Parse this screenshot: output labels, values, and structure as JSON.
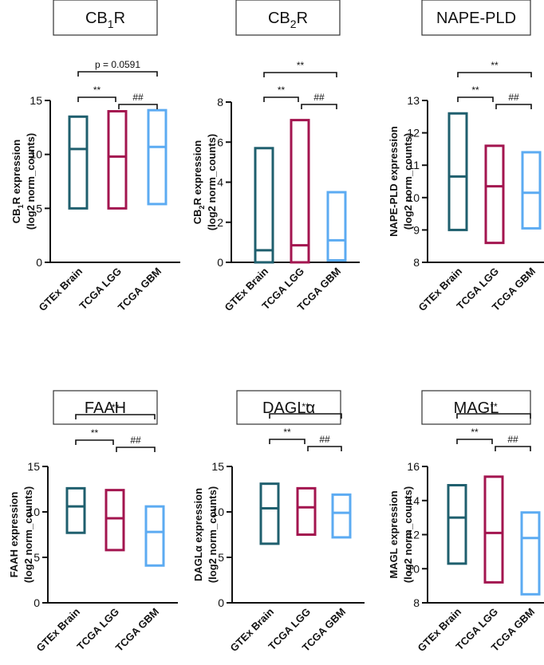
{
  "chart_data": [
    {
      "type": "box",
      "title": "CB1R",
      "title_parts": [
        {
          "t": "CB"
        },
        {
          "t": "1",
          "sub": true
        },
        {
          "t": "R"
        }
      ],
      "ylabel_lines": [
        [
          {
            "t": "CB"
          },
          {
            "t": "1",
            "sub": true
          },
          {
            "t": "R expression"
          }
        ],
        [
          {
            "t": "(log2 norm_counts)"
          }
        ]
      ],
      "ylim": [
        0,
        15
      ],
      "yticks": [
        0,
        5,
        10,
        15
      ],
      "categories": [
        "GTEx Brain",
        "TCGA LGG",
        "TCGA GBM"
      ],
      "boxes": [
        {
          "min": 5.0,
          "median": 10.5,
          "max": 13.5
        },
        {
          "min": 5.0,
          "median": 9.8,
          "max": 14.0
        },
        {
          "min": 5.4,
          "median": 10.7,
          "max": 14.1
        }
      ],
      "brackets": [
        {
          "from": 0,
          "to": 1,
          "label": "**"
        },
        {
          "from": 1,
          "to": 2,
          "label": "##"
        },
        {
          "from": 0,
          "to": 2,
          "label": "p = 0.0591"
        }
      ]
    },
    {
      "type": "box",
      "title": "CB2R",
      "title_parts": [
        {
          "t": "CB"
        },
        {
          "t": "2",
          "sub": true
        },
        {
          "t": "R"
        }
      ],
      "ylabel_lines": [
        [
          {
            "t": "CB"
          },
          {
            "t": "2",
            "sub": true
          },
          {
            "t": "R expression"
          }
        ],
        [
          {
            "t": "(log2 norm_counts)"
          }
        ]
      ],
      "ylim": [
        0,
        8
      ],
      "yticks": [
        0,
        2,
        4,
        6,
        8
      ],
      "categories": [
        "GTEx Brain",
        "TCGA LGG",
        "TCGA GBM"
      ],
      "boxes": [
        {
          "min": 0.0,
          "median": 0.6,
          "max": 5.7
        },
        {
          "min": 0.0,
          "median": 0.85,
          "max": 7.1
        },
        {
          "min": 0.1,
          "median": 1.1,
          "max": 3.5
        }
      ],
      "brackets": [
        {
          "from": 0,
          "to": 1,
          "label": "**"
        },
        {
          "from": 1,
          "to": 2,
          "label": "##"
        },
        {
          "from": 0,
          "to": 2,
          "label": "**"
        }
      ]
    },
    {
      "type": "box",
      "title": "NAPE-PLD",
      "title_parts": [
        {
          "t": "NAPE-PLD"
        }
      ],
      "ylabel_lines": [
        [
          {
            "t": "NAPE-PLD expression"
          }
        ],
        [
          {
            "t": "(log2 norm_counts)"
          }
        ]
      ],
      "ylim": [
        8,
        13
      ],
      "yticks": [
        8,
        9,
        10,
        11,
        12,
        13
      ],
      "categories": [
        "GTEx Brain",
        "TCGA LGG",
        "TCGA GBM"
      ],
      "boxes": [
        {
          "min": 9.0,
          "median": 10.65,
          "max": 12.6
        },
        {
          "min": 8.6,
          "median": 10.35,
          "max": 11.6
        },
        {
          "min": 9.05,
          "median": 10.15,
          "max": 11.4
        }
      ],
      "brackets": [
        {
          "from": 0,
          "to": 1,
          "label": "**"
        },
        {
          "from": 1,
          "to": 2,
          "label": "##"
        },
        {
          "from": 0,
          "to": 2,
          "label": "**"
        }
      ]
    },
    {
      "type": "box",
      "title": "FAAH",
      "title_parts": [
        {
          "t": "FAAH"
        }
      ],
      "ylabel_lines": [
        [
          {
            "t": "FAAH expression"
          }
        ],
        [
          {
            "t": "(log2 norm_counts)"
          }
        ]
      ],
      "ylim": [
        0,
        15
      ],
      "yticks": [
        0,
        5,
        10,
        15
      ],
      "categories": [
        "GTEx Brain",
        "TCGA LGG",
        "TCGA GBM"
      ],
      "boxes": [
        {
          "min": 7.7,
          "median": 10.6,
          "max": 12.6
        },
        {
          "min": 5.8,
          "median": 9.3,
          "max": 12.4
        },
        {
          "min": 4.1,
          "median": 7.8,
          "max": 10.6
        }
      ],
      "brackets": [
        {
          "from": 0,
          "to": 1,
          "label": "**"
        },
        {
          "from": 1,
          "to": 2,
          "label": "##"
        },
        {
          "from": 0,
          "to": 2,
          "label": "**"
        }
      ]
    },
    {
      "type": "box",
      "title": "DAGLα",
      "title_parts": [
        {
          "t": "DAGLα"
        }
      ],
      "ylabel_lines": [
        [
          {
            "t": "DAGLα expression"
          }
        ],
        [
          {
            "t": "(log2 norm_counts)"
          }
        ]
      ],
      "ylim": [
        0,
        15
      ],
      "yticks": [
        0,
        5,
        10,
        15
      ],
      "categories": [
        "GTEx Brain",
        "TCGA LGG",
        "TCGA GBM"
      ],
      "boxes": [
        {
          "min": 6.5,
          "median": 10.4,
          "max": 13.1
        },
        {
          "min": 7.5,
          "median": 10.5,
          "max": 12.6
        },
        {
          "min": 7.2,
          "median": 9.9,
          "max": 11.9
        }
      ],
      "brackets": [
        {
          "from": 0,
          "to": 1,
          "label": "**"
        },
        {
          "from": 1,
          "to": 2,
          "label": "##"
        },
        {
          "from": 0,
          "to": 2,
          "label": "**"
        }
      ]
    },
    {
      "type": "box",
      "title": "MAGL",
      "title_parts": [
        {
          "t": "MAGL"
        }
      ],
      "ylabel_lines": [
        [
          {
            "t": "MAGL expression"
          }
        ],
        [
          {
            "t": "(log2 norm_counts)"
          }
        ]
      ],
      "ylim": [
        8,
        16
      ],
      "yticks": [
        8,
        10,
        12,
        14,
        16
      ],
      "categories": [
        "GTEx Brain",
        "TCGA LGG",
        "TCGA GBM"
      ],
      "boxes": [
        {
          "min": 10.3,
          "median": 13.0,
          "max": 14.9
        },
        {
          "min": 9.2,
          "median": 12.1,
          "max": 15.4
        },
        {
          "min": 8.5,
          "median": 11.8,
          "max": 13.3
        }
      ],
      "brackets": [
        {
          "from": 0,
          "to": 1,
          "label": "**"
        },
        {
          "from": 1,
          "to": 2,
          "label": "##"
        },
        {
          "from": 0,
          "to": 2,
          "label": "**"
        }
      ]
    }
  ],
  "colors": {
    "GTEx Brain": "#1f5f6e",
    "TCGA LGG": "#a3154f",
    "TCGA GBM": "#5cabf2"
  }
}
